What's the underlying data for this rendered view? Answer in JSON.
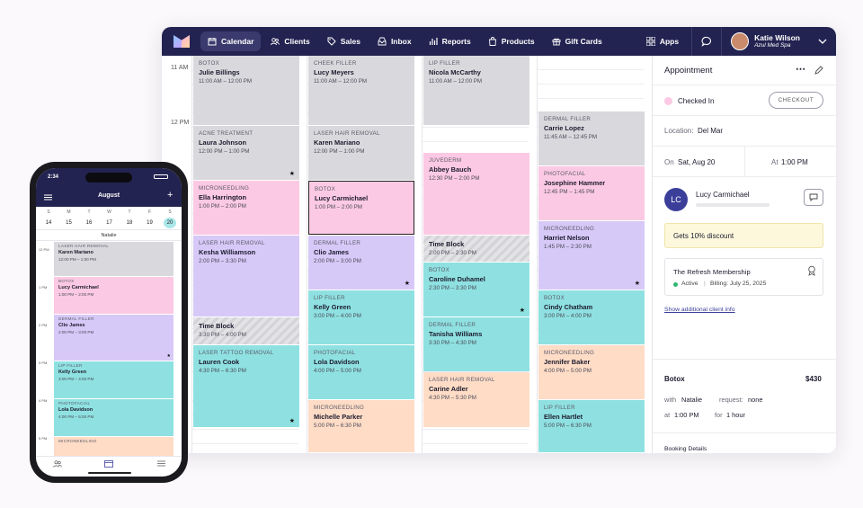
{
  "nav": {
    "items": [
      {
        "label": "Calendar",
        "icon": "calendar-icon"
      },
      {
        "label": "Clients",
        "icon": "clients-icon"
      },
      {
        "label": "Sales",
        "icon": "tag-icon"
      },
      {
        "label": "Inbox",
        "icon": "inbox-icon"
      },
      {
        "label": "Reports",
        "icon": "bar-chart-icon"
      },
      {
        "label": "Products",
        "icon": "bag-icon"
      },
      {
        "label": "Gift Cards",
        "icon": "gift-icon"
      }
    ],
    "apps_label": "Apps",
    "user_name": "Katie Wilson",
    "user_org": "Azul Med Spa"
  },
  "calendar": {
    "time_labels": [
      "11 AM",
      "12 PM"
    ],
    "columns": [
      [
        {
          "cat": "BOTOX",
          "name": "Julie Billings",
          "time": "11:00 AM – 12:00 PM",
          "color": "gray",
          "star": false
        },
        {
          "cat": "ACNE TREATMENT",
          "name": "Laura Johnson",
          "time": "12:00 PM – 1:00 PM",
          "color": "gray",
          "star": true
        },
        {
          "cat": "MICRONEEDLING",
          "name": "Ella Harrington",
          "time": "1:00 PM – 2:00 PM",
          "color": "pink",
          "star": false
        },
        {
          "cat": "LASER HAIR REMOVAL",
          "name": "Kesha Williamson",
          "time": "2:00 PM – 3:30 PM",
          "color": "purple",
          "star": false
        },
        {
          "cat": "",
          "name": "Time Block",
          "time": "3:30 PM – 4:00 PM",
          "color": "hatch",
          "star": false
        },
        {
          "cat": "LASER TATTOO REMOVAL",
          "name": "Lauren Cook",
          "time": "4:30 PM – 6:30 PM",
          "color": "teal",
          "star": true
        }
      ],
      [
        {
          "cat": "CHEEK FILLER",
          "name": "Lucy Meyers",
          "time": "11:00 AM – 12:00 PM",
          "color": "gray",
          "star": false
        },
        {
          "cat": "LASER HAIR REMOVAL",
          "name": "Karen Mariano",
          "time": "12:00 PM – 1:00 PM",
          "color": "gray",
          "star": false
        },
        {
          "cat": "BOTOX",
          "name": "Lucy Carmichael",
          "time": "1:00 PM – 2:00 PM",
          "color": "pink",
          "star": false
        },
        {
          "cat": "DERMAL FILLER",
          "name": "Clio James",
          "time": "2:00 PM – 3:00 PM",
          "color": "purple",
          "star": true
        },
        {
          "cat": "LIP FILLER",
          "name": "Kelly Green",
          "time": "3:00 PM – 4:00 PM",
          "color": "teal",
          "star": false
        },
        {
          "cat": "PHOTOFACIAL",
          "name": "Lola Davidson",
          "time": "4:00 PM – 5:00 PM",
          "color": "teal",
          "star": false
        },
        {
          "cat": "MICRONEEDLING",
          "name": "Michelle Parker",
          "time": "5:00 PM – 6:30 PM",
          "color": "peach",
          "star": false
        }
      ],
      [
        {
          "cat": "LIP FILLER",
          "name": "Nicola McCarthy",
          "time": "11:00 AM – 12:00 PM",
          "color": "gray",
          "star": false
        },
        {
          "cat": "JUVEDERM",
          "name": "Abbey Bauch",
          "time": "12:30 PM – 2:00 PM",
          "color": "pink",
          "star": false
        },
        {
          "cat": "",
          "name": "Time Block",
          "time": "2:00 PM – 2:30 PM",
          "color": "hatch",
          "star": false
        },
        {
          "cat": "BOTOX",
          "name": "Caroline Duhamel",
          "time": "2:30 PM – 3:30 PM",
          "color": "teal",
          "star": true
        },
        {
          "cat": "DERMAL FILLER",
          "name": "Tanisha Williams",
          "time": "3:30 PM – 4:30 PM",
          "color": "teal",
          "star": false
        },
        {
          "cat": "LASER HAIR REMOVAL",
          "name": "Carine Adler",
          "time": "4:30 PM – 5:30 PM",
          "color": "peach",
          "star": false
        }
      ],
      [
        {
          "cat": "DERMAL FILLER",
          "name": "Carrie Lopez",
          "time": "11:45 AM – 12:45 PM",
          "color": "gray",
          "star": false
        },
        {
          "cat": "PHOTOFACIAL",
          "name": "Josephine Hammer",
          "time": "12:45 PM – 1:45 PM",
          "color": "pink",
          "star": false
        },
        {
          "cat": "MICRONEEDLING",
          "name": "Harriet Nelson",
          "time": "1:45 PM – 2:30 PM",
          "color": "purple",
          "star": true
        },
        {
          "cat": "BOTOX",
          "name": "Cindy Chatham",
          "time": "3:00 PM – 4:00 PM",
          "color": "teal",
          "star": false
        },
        {
          "cat": "MICRONEEDLING",
          "name": "Jennifer Baker",
          "time": "4:00 PM – 5:00 PM",
          "color": "peach",
          "star": false
        },
        {
          "cat": "LIP FILLER",
          "name": "Ellen Hartlet",
          "time": "5:00 PM – 6:30 PM",
          "color": "teal",
          "star": false
        }
      ]
    ]
  },
  "panel": {
    "title": "Appointment",
    "status": "Checked In",
    "checkout": "CHECKOUT",
    "location_label": "Location:",
    "location": "Del Mar",
    "on_label": "On",
    "date": "Sat, Aug 20",
    "at_label": "At",
    "time": "1:00 PM",
    "initials": "LC",
    "client": "Lucy Carmichael",
    "discount": "Gets 10% discount",
    "membership": "The Refresh Membership",
    "membership_status": "Active",
    "billing": "Billing: July 25, 2025",
    "show_more": "Show additional client info",
    "service": "Botox",
    "price": "$430",
    "with_label": "with",
    "staff": "Natalie",
    "request_label": "request:",
    "request": "none",
    "at2_label": "at",
    "time2": "1:00 PM",
    "for_label": "for",
    "duration": "1 hour",
    "booking_details": "Booking Details"
  },
  "phone": {
    "clock": "2:34",
    "month": "August",
    "days": [
      "S",
      "M",
      "T",
      "W",
      "T",
      "F",
      "S"
    ],
    "dates": [
      "14",
      "15",
      "16",
      "17",
      "18",
      "19",
      "20"
    ],
    "staff": "Natalie",
    "time_labels": [
      "12 PM",
      "1 PM",
      "2 PM",
      "3 PM",
      "4 PM",
      "5 PM"
    ],
    "appts": [
      {
        "cat": "LASER HAIR REMOVAL",
        "name": "Karen Mariano",
        "time": "12:00 PM – 1:00 PM",
        "color": "gray"
      },
      {
        "cat": "BOTOX",
        "name": "Lucy Carmichael",
        "time": "1:00 PM – 2:00 PM",
        "color": "pink"
      },
      {
        "cat": "DERMAL FILLER",
        "name": "Clio James",
        "time": "2:00 PM – 3:00 PM",
        "color": "purple"
      },
      {
        "cat": "LIP FILLER",
        "name": "Kelly Green",
        "time": "3:00 PM – 4:00 PM",
        "color": "teal"
      },
      {
        "cat": "PHOTOFACIAL",
        "name": "Lola Davidson",
        "time": "4:00 PM – 5:00 PM",
        "color": "teal"
      },
      {
        "cat": "MICRONEEDLING",
        "name": "",
        "time": "",
        "color": "peach"
      }
    ]
  },
  "colors": {
    "nav": "#232352",
    "accent": "#3b3f99",
    "pink": "#fcc9e4",
    "teal": "#8fe1e1",
    "purple": "#d7c9f7",
    "peach": "#ffdcc6",
    "gray": "#d9d9dd"
  }
}
